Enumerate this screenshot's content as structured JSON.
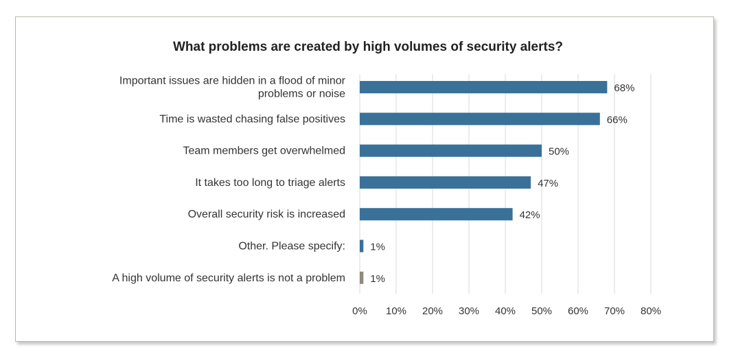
{
  "chart_data": {
    "type": "bar",
    "orientation": "horizontal",
    "title": "What problems are created by high volumes of security alerts?",
    "categories": [
      [
        "Important issues are hidden in a flood of minor",
        "problems or noise"
      ],
      [
        "Time is wasted chasing false positives"
      ],
      [
        "Team members get overwhelmed"
      ],
      [
        "It takes too long to triage alerts"
      ],
      [
        "Overall security risk is increased"
      ],
      [
        "Other. Please specify:"
      ],
      [
        "A high volume of security alerts is not a problem"
      ]
    ],
    "values": [
      68,
      66,
      50,
      47,
      42,
      1,
      1
    ],
    "value_labels": [
      "68%",
      "66%",
      "50%",
      "47%",
      "42%",
      "1%",
      "1%"
    ],
    "bar_colors": [
      "#3a7199",
      "#3a7199",
      "#3a7199",
      "#3a7199",
      "#3a7199",
      "#3a7199",
      "#8f8a7e"
    ],
    "xlim": [
      0,
      80
    ],
    "xticks": [
      "0%",
      "10%",
      "20%",
      "30%",
      "40%",
      "50%",
      "60%",
      "70%",
      "80%"
    ],
    "grid": true,
    "xlabel": "",
    "ylabel": ""
  }
}
